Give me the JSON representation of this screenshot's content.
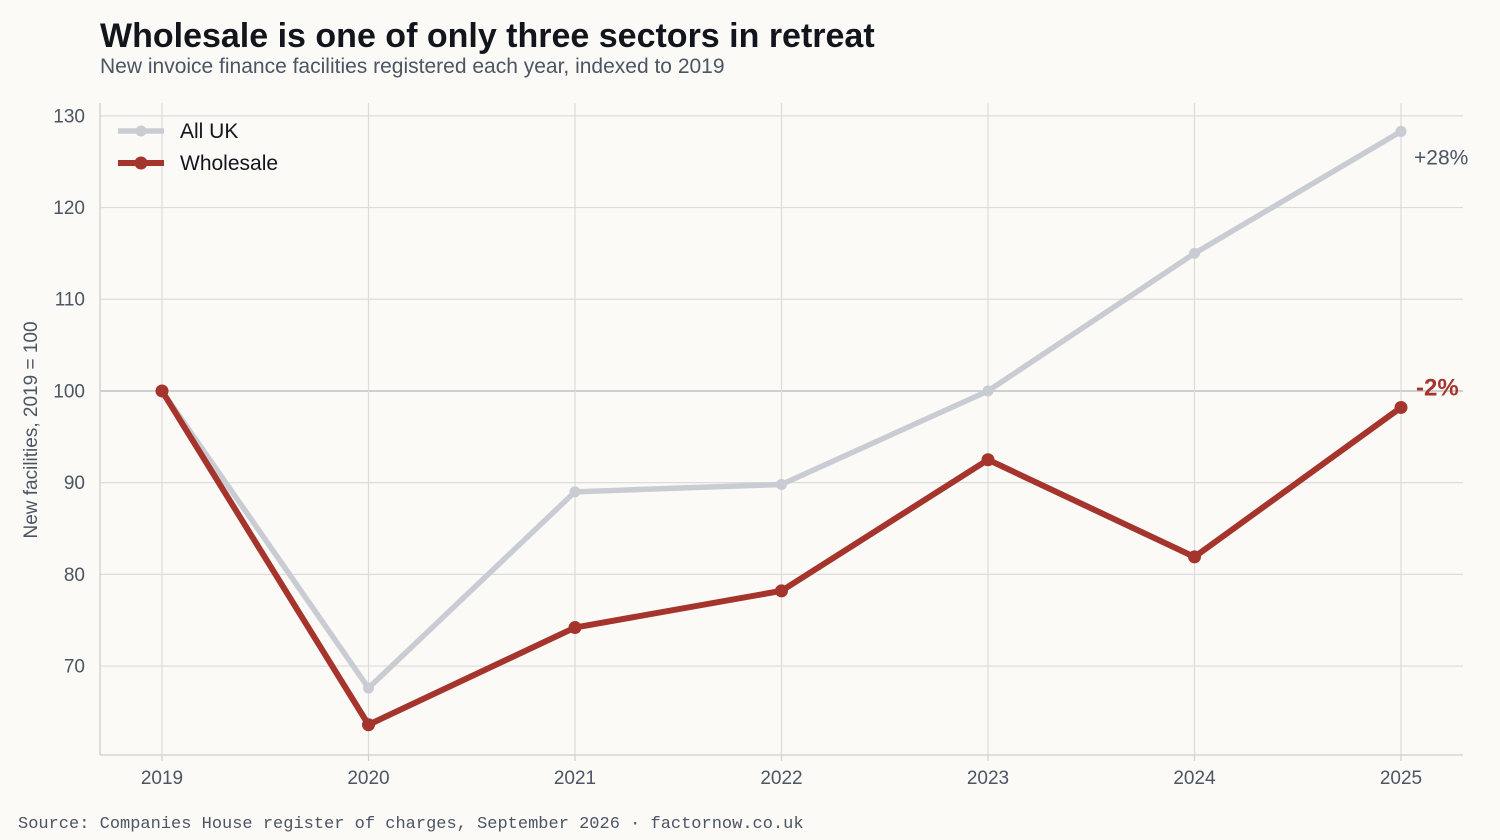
{
  "chart_data": {
    "type": "line",
    "title": "Wholesale is one of only three sectors in retreat",
    "subtitle": "New invoice finance facilities registered each year, indexed to 2019",
    "xlabel": "",
    "ylabel": "New facilities, 2019 = 100",
    "x": [
      "2019",
      "2020",
      "2021",
      "2022",
      "2023",
      "2024",
      "2025"
    ],
    "yticks": [
      70,
      80,
      90,
      100,
      110,
      120,
      130
    ],
    "ylim": [
      60.3,
      131.4
    ],
    "grid": true,
    "legend": "top-left",
    "series": [
      {
        "name": "All UK",
        "values": [
          100,
          67.6,
          89,
          89.8,
          100,
          115,
          128.3
        ],
        "color": "#c9cdd3",
        "end_label": "+28%",
        "end_label_color": "#4b5563"
      },
      {
        "name": "Wholesale",
        "values": [
          100,
          63.6,
          74.2,
          78.2,
          92.5,
          81.9,
          98.2
        ],
        "color": "#a5342c",
        "end_label": "-2%",
        "end_label_color": "#a5342c"
      }
    ],
    "reference_line": 100
  },
  "source": "Source: Companies House register of charges, September 2026 · factornow.co.uk"
}
